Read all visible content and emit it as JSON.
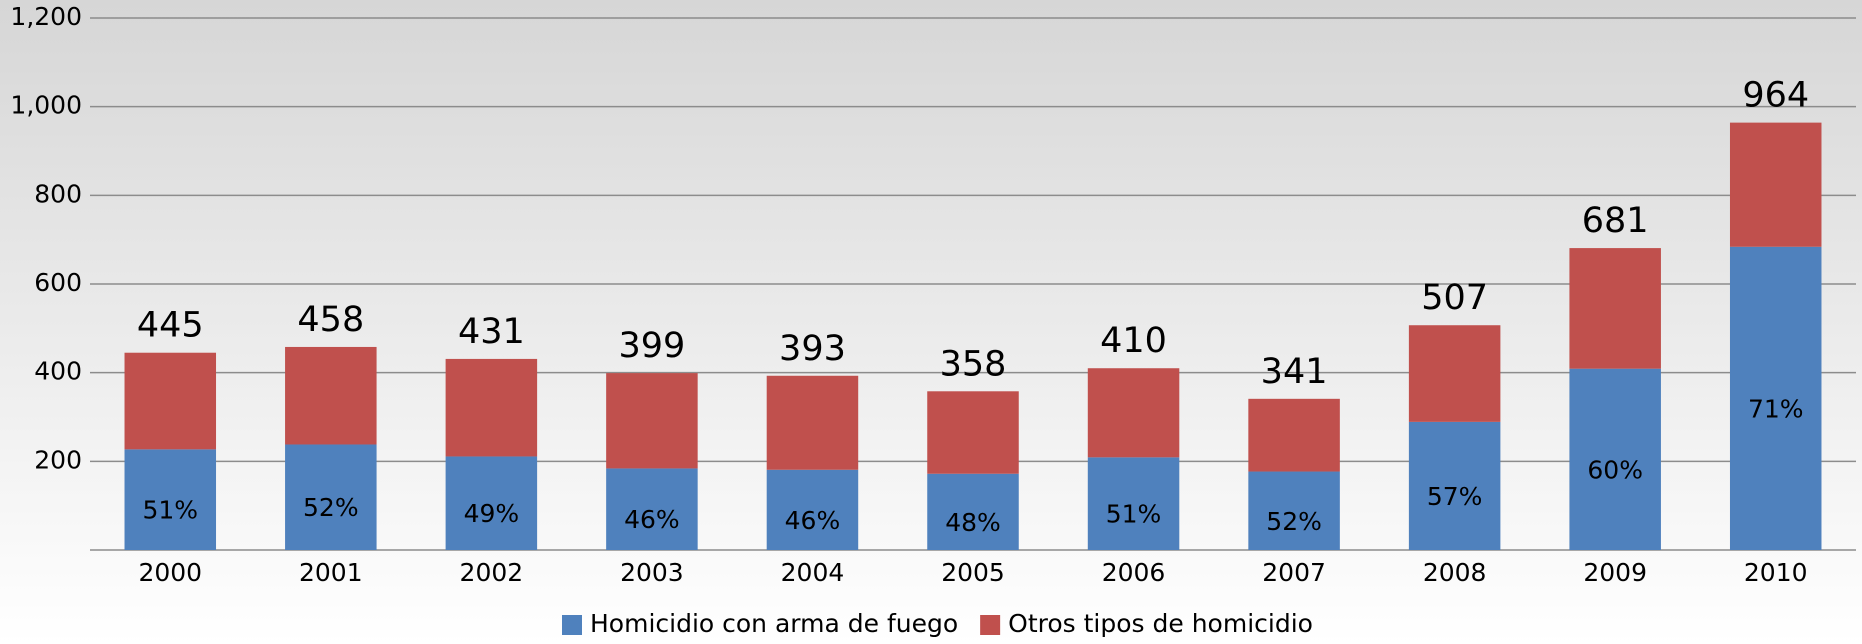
{
  "chart_data": {
    "type": "stacked_bar",
    "categories": [
      "2000",
      "2001",
      "2002",
      "2003",
      "2004",
      "2005",
      "2006",
      "2007",
      "2008",
      "2009",
      "2010"
    ],
    "series": [
      {
        "name": "Homicidio con arma de fuego",
        "color": "#4f81bd",
        "values": [
          227,
          238,
          211,
          184,
          181,
          172,
          209,
          177,
          289,
          409,
          684
        ],
        "value_labels": [
          "51%",
          "52%",
          "49%",
          "46%",
          "46%",
          "48%",
          "51%",
          "52%",
          "57%",
          "60%",
          "71%"
        ]
      },
      {
        "name": "Otros tipos de homicidio",
        "color": "#c0504d",
        "values": [
          218,
          220,
          220,
          215,
          212,
          186,
          201,
          164,
          218,
          272,
          280
        ]
      }
    ],
    "totals": [
      445,
      458,
      431,
      399,
      393,
      358,
      410,
      341,
      507,
      681,
      964
    ],
    "ylim": [
      0,
      1200
    ],
    "yticks": [
      200,
      400,
      600,
      800,
      {
        "value": 1000,
        "label": "1,000"
      },
      {
        "value": 1200,
        "label": "1,200"
      }
    ],
    "grid": true,
    "legend": "bottom"
  }
}
